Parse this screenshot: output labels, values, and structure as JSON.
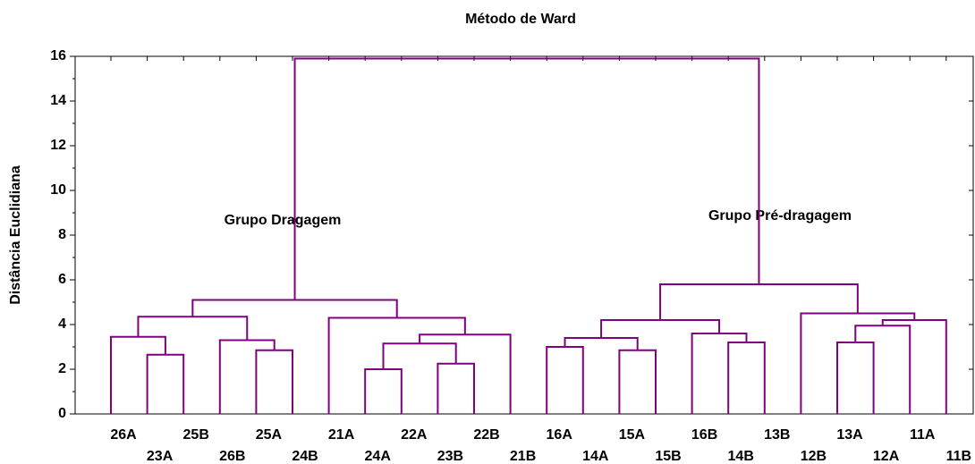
{
  "chart_data": {
    "type": "dendrogram",
    "title": "Método de Ward",
    "ylabel": "Distância Euclidiana",
    "color": "#800080",
    "ylim": [
      0,
      16
    ],
    "yticks": [
      0,
      2,
      4,
      6,
      8,
      10,
      12,
      14,
      16
    ],
    "annotations": [
      "Grupo Dragagem",
      "Grupo Pré-dragagem"
    ],
    "tree": {
      "height": 15.9,
      "children": [
        {
          "height": 5.1,
          "children": [
            {
              "height": 4.35,
              "children": [
                {
                  "height": 3.45,
                  "children": [
                    "26A",
                    {
                      "height": 2.65,
                      "children": [
                        "23A",
                        "25B"
                      ]
                    }
                  ]
                },
                {
                  "height": 3.3,
                  "children": [
                    "26B",
                    {
                      "height": 2.85,
                      "children": [
                        "25A",
                        "24B"
                      ]
                    }
                  ]
                }
              ]
            },
            {
              "height": 4.3,
              "children": [
                "21A",
                {
                  "height": 3.55,
                  "children": [
                    {
                      "height": 3.15,
                      "children": [
                        {
                          "height": 2.0,
                          "children": [
                            "24A",
                            "22A"
                          ]
                        },
                        {
                          "height": 2.25,
                          "children": [
                            "23B",
                            "22B"
                          ]
                        }
                      ]
                    },
                    "21B"
                  ]
                }
              ]
            }
          ]
        },
        {
          "height": 5.8,
          "children": [
            {
              "height": 4.2,
              "children": [
                {
                  "height": 3.4,
                  "children": [
                    {
                      "height": 3.0,
                      "children": [
                        "16A",
                        "14A"
                      ]
                    },
                    {
                      "height": 2.85,
                      "children": [
                        "15A",
                        "15B"
                      ]
                    }
                  ]
                },
                {
                  "height": 3.6,
                  "children": [
                    "16B",
                    {
                      "height": 3.2,
                      "children": [
                        "14B",
                        "13B"
                      ]
                    }
                  ]
                }
              ]
            },
            {
              "height": 4.5,
              "children": [
                "12B",
                {
                  "height": 4.2,
                  "children": [
                    {
                      "height": 3.95,
                      "children": [
                        {
                          "height": 3.2,
                          "children": [
                            "13A",
                            "12A"
                          ]
                        },
                        "11A"
                      ]
                    },
                    "11B"
                  ]
                }
              ]
            }
          ]
        }
      ]
    }
  }
}
